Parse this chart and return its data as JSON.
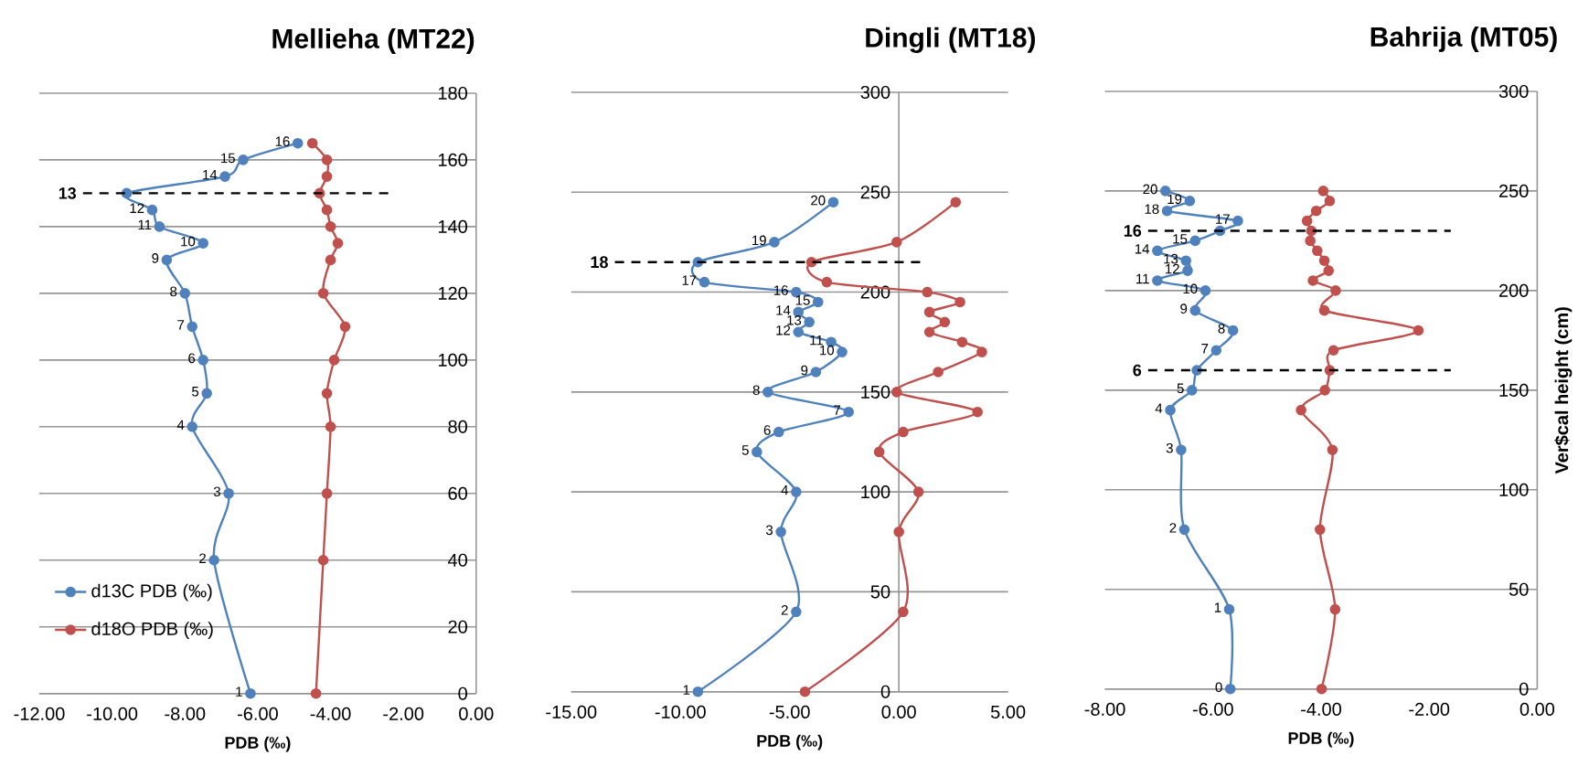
{
  "chart_data": [
    {
      "type": "line",
      "title": "Mellieha (MT22)",
      "xlabel": "PDB (‰)",
      "marker": "circle",
      "grid": "y",
      "legend": "bottom left",
      "xlim": [
        -12,
        0
      ],
      "xticks": [
        {
          "value": -12,
          "label": "-12.00"
        },
        {
          "value": -10,
          "label": "-10.00"
        },
        {
          "value": -8,
          "label": "-8.00"
        },
        {
          "value": -6,
          "label": "-6.00"
        },
        {
          "value": -4,
          "label": "-4.00"
        },
        {
          "value": -2,
          "label": "-2.00"
        },
        {
          "value": 0,
          "label": "0.00"
        }
      ],
      "ylim": [
        0,
        180
      ],
      "yticks": [
        0,
        20,
        40,
        60,
        80,
        100,
        120,
        140,
        160,
        180
      ],
      "ref_lines": [
        {
          "axis": "y",
          "value": 150,
          "color": "#000000",
          "line_style": "dashed"
        }
      ],
      "annotations": [
        {
          "text": "1",
          "x": -6.2,
          "y": 0
        },
        {
          "text": "2",
          "x": -7.2,
          "y": 40
        },
        {
          "text": "3",
          "x": -6.8,
          "y": 60
        },
        {
          "text": "4",
          "x": -7.8,
          "y": 80
        },
        {
          "text": "5",
          "x": -7.4,
          "y": 90
        },
        {
          "text": "6",
          "x": -7.5,
          "y": 100
        },
        {
          "text": "7",
          "x": -7.8,
          "y": 110
        },
        {
          "text": "8",
          "x": -8.0,
          "y": 120
        },
        {
          "text": "9",
          "x": -8.5,
          "y": 130
        },
        {
          "text": "10",
          "x": -7.5,
          "y": 135
        },
        {
          "text": "11",
          "x": -8.7,
          "y": 140
        },
        {
          "text": "12",
          "x": -8.9,
          "y": 145
        },
        "13",
        {
          "text": "14",
          "x": -6.9,
          "y": 155
        },
        {
          "text": "15",
          "x": -6.4,
          "y": 160
        },
        {
          "text": "16",
          "x": -4.9,
          "y": 165
        }
      ],
      "series": [
        {
          "name": "d13C PDB (‰)",
          "color": "#4f81bd",
          "x": [
            -6.2,
            -7.2,
            -6.8,
            -7.8,
            -7.4,
            -7.5,
            -7.8,
            -8.0,
            -8.5,
            -7.5,
            -8.7,
            -8.9,
            -9.6,
            -6.9,
            -6.4,
            -4.9
          ],
          "values": [
            0,
            40,
            60,
            80,
            90,
            100,
            110,
            120,
            130,
            135,
            140,
            145,
            150,
            155,
            160,
            165
          ]
        },
        {
          "name": "d18O PDB (‰)",
          "color": "#c0504d",
          "x": [
            -4.4,
            -4.2,
            -4.1,
            -4.0,
            -4.1,
            -3.9,
            -3.6,
            -4.2,
            -4.0,
            -3.8,
            -4.0,
            -4.1,
            -4.3,
            -4.1,
            -4.1,
            -4.5
          ],
          "values": [
            0,
            40,
            60,
            80,
            90,
            100,
            110,
            120,
            130,
            135,
            140,
            145,
            150,
            155,
            160,
            165
          ]
        }
      ]
    },
    {
      "type": "line",
      "title": "Dingli (MT18)",
      "xlabel": "PDB (‰)",
      "marker": "circle",
      "grid": "y",
      "xlim": [
        -15,
        5
      ],
      "xticks": [
        {
          "value": -15,
          "label": "-15.00"
        },
        {
          "value": -10,
          "label": "-10.00"
        },
        {
          "value": -5,
          "label": "-5.00"
        },
        {
          "value": 0,
          "label": "0.00"
        },
        {
          "value": 5,
          "label": "5.00"
        }
      ],
      "ylim": [
        0,
        300
      ],
      "yticks": [
        0,
        50,
        100,
        150,
        200,
        250,
        300
      ],
      "ref_lines": [
        {
          "axis": "y",
          "value": 215,
          "color": "#000000",
          "line_style": "dashed"
        }
      ],
      "annotations": [
        {
          "text": "1",
          "x": -9.2,
          "y": 0
        },
        {
          "text": "2",
          "x": -4.7,
          "y": 40
        },
        {
          "text": "3",
          "x": -5.4,
          "y": 80
        },
        {
          "text": "4",
          "x": -4.7,
          "y": 100
        },
        {
          "text": "5",
          "x": -6.5,
          "y": 120
        },
        {
          "text": "6",
          "x": -5.5,
          "y": 130
        },
        {
          "text": "7",
          "x": -2.3,
          "y": 140
        },
        {
          "text": "8",
          "x": -6.0,
          "y": 150
        },
        {
          "text": "9",
          "x": -3.8,
          "y": 160
        },
        {
          "text": "10",
          "x": -2.6,
          "y": 170
        },
        {
          "text": "11",
          "x": -3.1,
          "y": 175
        },
        {
          "text": "12",
          "x": -4.6,
          "y": 180
        },
        {
          "text": "13",
          "x": -4.1,
          "y": 185
        },
        {
          "text": "14",
          "x": -4.6,
          "y": 190
        },
        {
          "text": "15",
          "x": -3.7,
          "y": 195
        },
        {
          "text": "16",
          "x": -4.7,
          "y": 200
        },
        {
          "text": "17",
          "x": -8.9,
          "y": 205
        },
        "18",
        {
          "text": "19",
          "x": -5.7,
          "y": 225
        },
        {
          "text": "20",
          "x": -3.0,
          "y": 245
        }
      ],
      "series": [
        {
          "color": "#4f81bd",
          "x": [
            -9.2,
            -4.7,
            -5.4,
            -4.7,
            -6.5,
            -5.5,
            -2.3,
            -6.0,
            -3.8,
            -2.6,
            -3.1,
            -4.6,
            -4.1,
            -4.6,
            -3.7,
            -4.7,
            -8.9,
            -9.2,
            -5.7,
            -3.0
          ],
          "values": [
            0,
            40,
            80,
            100,
            120,
            130,
            140,
            150,
            160,
            170,
            175,
            180,
            185,
            190,
            195,
            200,
            205,
            215,
            225,
            245
          ]
        },
        {
          "color": "#c0504d",
          "x": [
            -4.3,
            0.2,
            0.0,
            0.9,
            -0.9,
            0.2,
            3.6,
            -0.1,
            1.8,
            3.8,
            2.9,
            1.4,
            2.1,
            1.4,
            2.8,
            1.3,
            -3.3,
            -4.0,
            -0.1,
            2.6
          ],
          "values": [
            0,
            40,
            80,
            100,
            120,
            130,
            140,
            150,
            160,
            170,
            175,
            180,
            185,
            190,
            195,
            200,
            205,
            215,
            225,
            245
          ]
        }
      ]
    },
    {
      "type": "line",
      "title": "Bahrija (MT05)",
      "xlabel": "PDB (‰)",
      "ylabel": "Ver$cal height (cm)",
      "marker": "circle",
      "grid": "y",
      "xlim": [
        -8,
        0
      ],
      "xticks": [
        {
          "value": -8,
          "label": "-8.00"
        },
        {
          "value": -6,
          "label": "-6.00"
        },
        {
          "value": -4,
          "label": "-4.00"
        },
        {
          "value": -2,
          "label": "-2.00"
        },
        {
          "value": 0,
          "label": "0.00"
        }
      ],
      "ylim": [
        0,
        300
      ],
      "yticks": [
        0,
        50,
        100,
        150,
        200,
        250,
        300
      ],
      "ref_lines": [
        {
          "axis": "y",
          "value": 160,
          "color": "#000000",
          "line_style": "dashed"
        },
        {
          "axis": "y",
          "value": 230,
          "color": "#000000",
          "line_style": "dashed"
        }
      ],
      "annotations": [
        {
          "text": "0",
          "x": -5.68,
          "y": 0
        },
        {
          "text": "1",
          "x": -5.7,
          "y": 40
        },
        {
          "text": "2",
          "x": -6.53,
          "y": 80
        },
        {
          "text": "3",
          "x": -6.59,
          "y": 120
        },
        {
          "text": "4",
          "x": -6.79,
          "y": 140
        },
        {
          "text": "5",
          "x": -6.39,
          "y": 150
        },
        "6",
        {
          "text": "7",
          "x": -5.94,
          "y": 170
        },
        {
          "text": "8",
          "x": -5.63,
          "y": 180
        },
        {
          "text": "9",
          "x": -6.33,
          "y": 190
        },
        {
          "text": "10",
          "x": -6.14,
          "y": 200
        },
        {
          "text": "11",
          "x": -7.03,
          "y": 205
        },
        {
          "text": "12",
          "x": -6.47,
          "y": 210
        },
        {
          "text": "13",
          "x": -6.5,
          "y": 215
        },
        {
          "text": "14",
          "x": -7.03,
          "y": 220
        },
        {
          "text": "15",
          "x": -6.33,
          "y": 225
        },
        "16",
        {
          "text": "17",
          "x": -5.54,
          "y": 235
        },
        {
          "text": "18",
          "x": -6.85,
          "y": 240
        },
        {
          "text": "19",
          "x": -6.43,
          "y": 245
        },
        {
          "text": "20",
          "x": -6.88,
          "y": 250
        }
      ],
      "series": [
        {
          "color": "#4f81bd",
          "x": [
            -5.68,
            -5.7,
            -6.53,
            -6.59,
            -6.79,
            -6.39,
            -6.3,
            -5.94,
            -5.63,
            -6.33,
            -6.14,
            -7.03,
            -6.47,
            -6.5,
            -7.03,
            -6.33,
            -5.87,
            -5.54,
            -6.85,
            -6.43,
            -6.88
          ],
          "values": [
            0,
            40,
            80,
            120,
            140,
            150,
            160,
            170,
            180,
            190,
            200,
            205,
            210,
            215,
            220,
            225,
            230,
            235,
            240,
            245,
            250
          ]
        },
        {
          "color": "#c0504d",
          "x": [
            -3.99,
            -3.74,
            -4.02,
            -3.79,
            -4.37,
            -3.93,
            -3.84,
            -3.77,
            -2.2,
            -3.94,
            -3.73,
            -4.15,
            -3.86,
            -3.94,
            -4.07,
            -4.2,
            -4.18,
            -4.26,
            -4.09,
            -3.84,
            -3.96
          ],
          "values": [
            0,
            40,
            80,
            120,
            140,
            150,
            160,
            170,
            180,
            190,
            200,
            205,
            210,
            215,
            220,
            225,
            230,
            235,
            240,
            245,
            250
          ]
        }
      ]
    }
  ]
}
